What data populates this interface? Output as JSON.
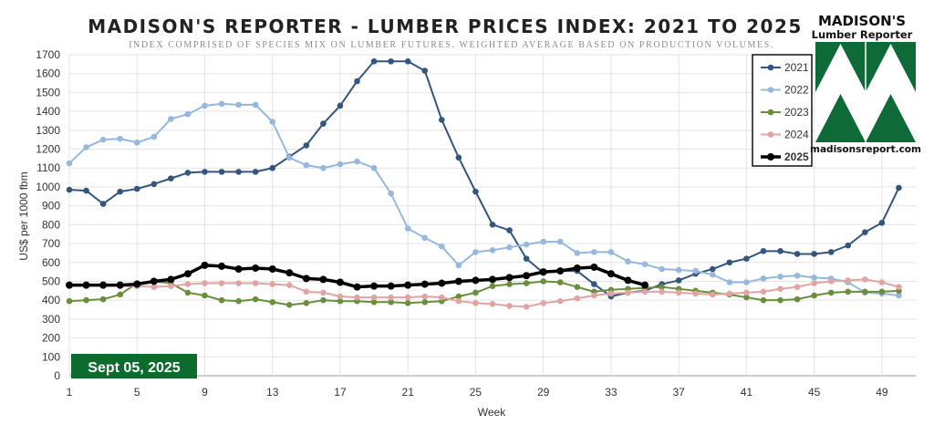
{
  "header": {
    "title": "MADISON'S REPORTER - LUMBER PRICES INDEX: 2021 TO 2025",
    "subtitle": "INDEX COMPRISED OF SPECIES MIX ON LUMBER FUTURES. WEIGHTED AVERAGE BASED ON PRODUCTION VOLUMES."
  },
  "logo": {
    "line1": "MADISON'S",
    "line2": "Lumber Reporter",
    "url": "madisonsreport.com",
    "color": "#0e6b37"
  },
  "date_badge": {
    "label": "Sept 05, 2025",
    "color": "#0e6b2e"
  },
  "chart_data": {
    "type": "line",
    "title": "MADISON'S REPORTER - LUMBER PRICES INDEX: 2021 TO 2025",
    "xlabel": "Week",
    "ylabel": "US$ per 1000 fbm",
    "xlim": [
      1,
      51
    ],
    "ylim": [
      0,
      1700
    ],
    "x_ticks": [
      "1",
      "5",
      "9",
      "13",
      "17",
      "21",
      "25",
      "29",
      "33",
      "37",
      "41",
      "45",
      "49"
    ],
    "y_ticks": [
      "0",
      "100",
      "200",
      "300",
      "400",
      "500",
      "600",
      "700",
      "800",
      "900",
      "1000",
      "1100",
      "1200",
      "1300",
      "1400",
      "1500",
      "1600",
      "1700"
    ],
    "grid": true,
    "legend_position": "top-right",
    "series": [
      {
        "name": "2021",
        "color": "#34557e",
        "bold": false,
        "values": [
          985,
          980,
          910,
          975,
          990,
          1015,
          1045,
          1075,
          1080,
          1080,
          1080,
          1080,
          1100,
          1160,
          1220,
          1335,
          1430,
          1560,
          1665,
          1665,
          1665,
          1615,
          1355,
          1155,
          975,
          800,
          770,
          620,
          545,
          555,
          555,
          485,
          420,
          440,
          450,
          485,
          505,
          540,
          565,
          600,
          620,
          660,
          660,
          645,
          645,
          655,
          690,
          760,
          810,
          995
        ]
      },
      {
        "name": "2022",
        "color": "#95b8dc",
        "bold": false,
        "values": [
          1125,
          1210,
          1250,
          1255,
          1235,
          1265,
          1360,
          1385,
          1430,
          1440,
          1435,
          1435,
          1345,
          1155,
          1115,
          1100,
          1120,
          1135,
          1100,
          965,
          780,
          730,
          685,
          585,
          655,
          665,
          680,
          695,
          710,
          710,
          650,
          655,
          655,
          605,
          590,
          565,
          560,
          555,
          535,
          495,
          495,
          515,
          525,
          530,
          520,
          515,
          495,
          440,
          435,
          425
        ]
      },
      {
        "name": "2023",
        "color": "#6a8f3c",
        "bold": false,
        "values": [
          395,
          400,
          405,
          430,
          490,
          500,
          490,
          440,
          425,
          400,
          395,
          405,
          390,
          375,
          385,
          400,
          395,
          395,
          390,
          390,
          385,
          390,
          395,
          420,
          440,
          475,
          485,
          490,
          500,
          495,
          470,
          445,
          455,
          460,
          465,
          470,
          460,
          450,
          440,
          430,
          415,
          400,
          400,
          405,
          425,
          440,
          445,
          445,
          445,
          450
        ]
      },
      {
        "name": "2024",
        "color": "#e0a5a3",
        "bold": false,
        "values": [
          480,
          480,
          480,
          475,
          475,
          470,
          475,
          485,
          490,
          490,
          490,
          490,
          485,
          480,
          445,
          440,
          420,
          415,
          415,
          415,
          415,
          420,
          415,
          395,
          385,
          380,
          370,
          365,
          385,
          395,
          410,
          425,
          435,
          440,
          445,
          445,
          440,
          435,
          430,
          435,
          440,
          445,
          460,
          470,
          490,
          500,
          505,
          510,
          495,
          470
        ]
      },
      {
        "name": "2025",
        "color": "#000000",
        "bold": true,
        "values": [
          480,
          480,
          480,
          480,
          485,
          500,
          510,
          540,
          585,
          580,
          565,
          570,
          565,
          545,
          515,
          510,
          495,
          470,
          475,
          475,
          480,
          485,
          490,
          500,
          505,
          510,
          520,
          530,
          550,
          555,
          570,
          575,
          540,
          505,
          480
        ]
      }
    ]
  }
}
